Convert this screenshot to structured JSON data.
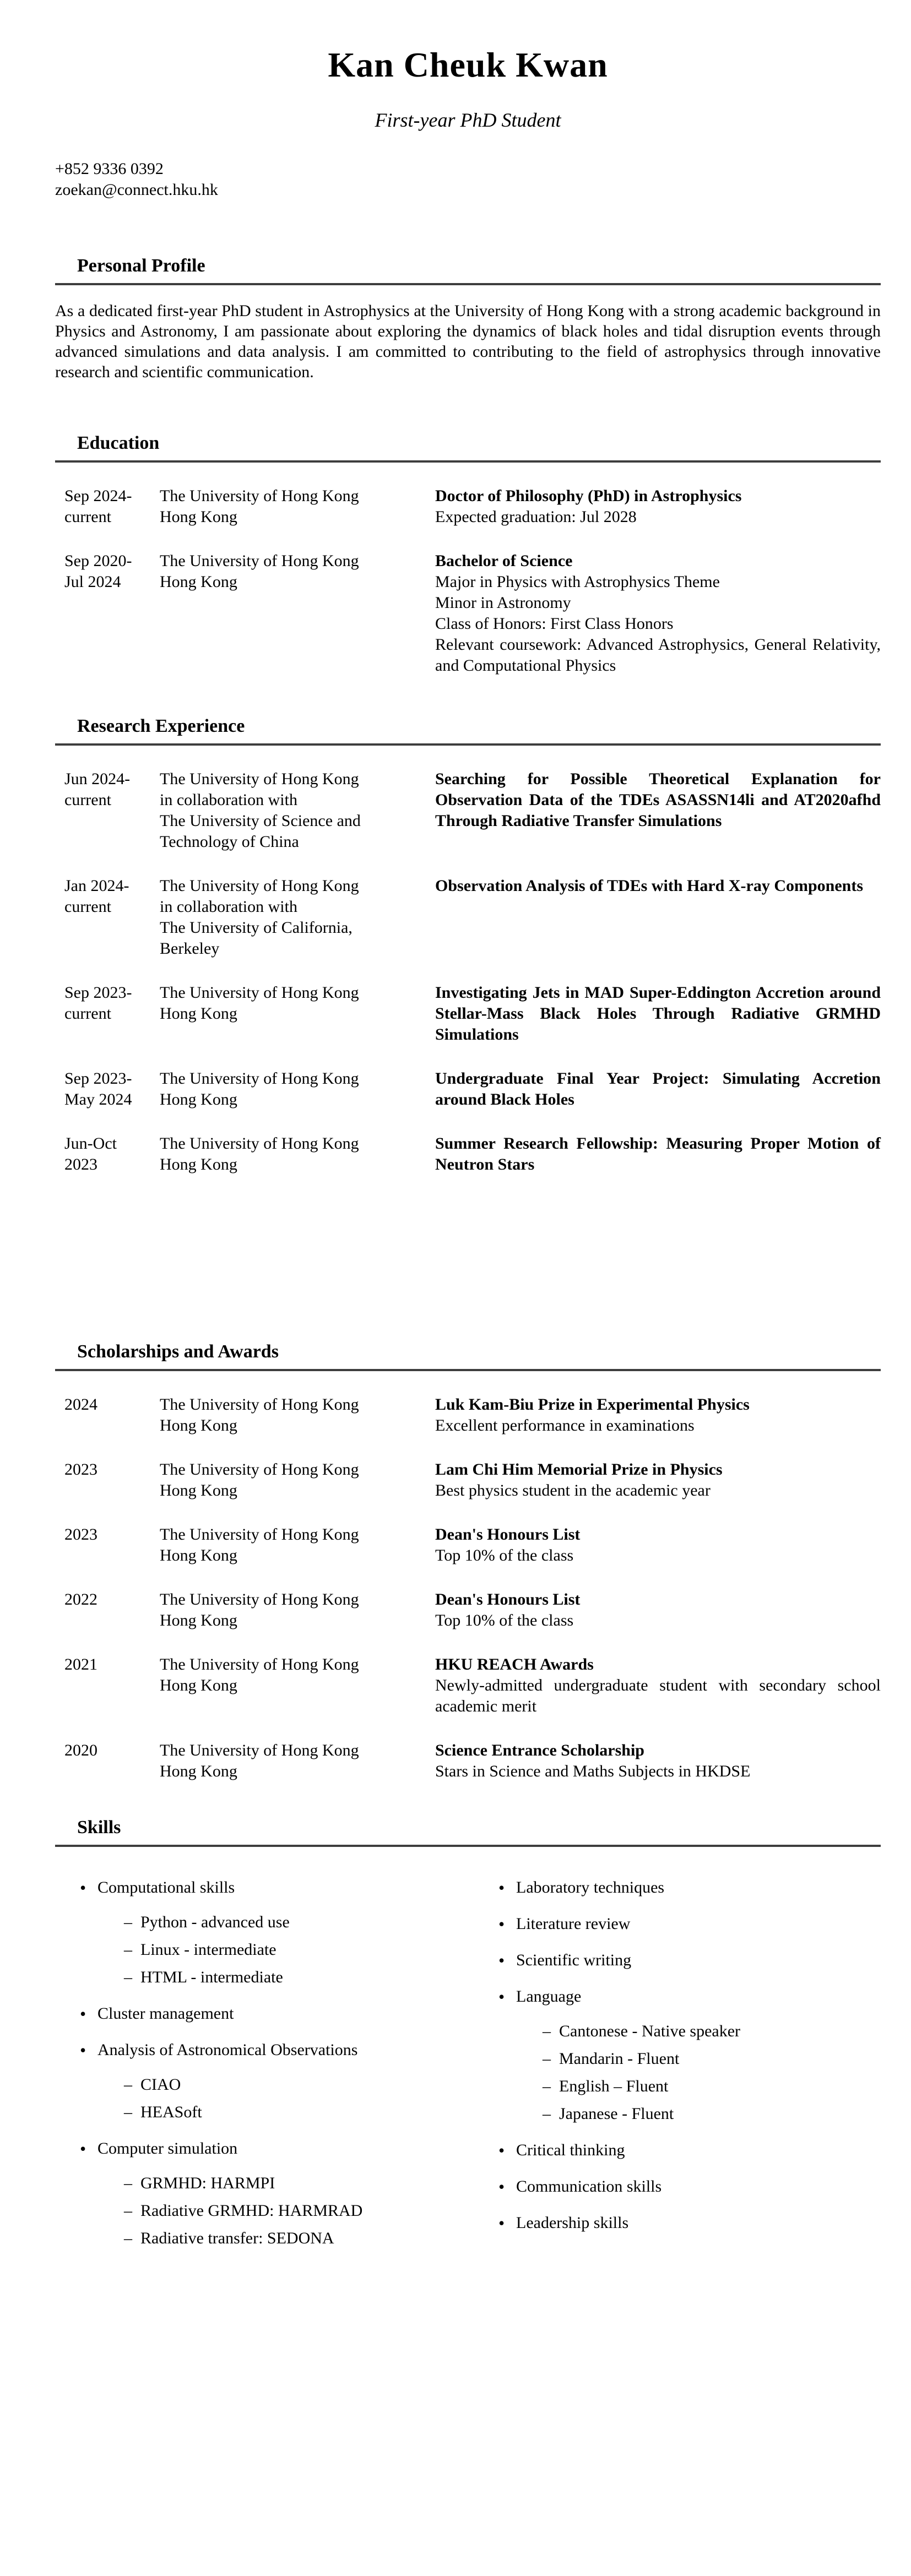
{
  "header": {
    "name": "Kan Cheuk Kwan",
    "subtitle": "First-year PhD Student",
    "phone": "+852 9336 0392",
    "email": "zoekan@connect.hku.hk"
  },
  "profile": {
    "title": "Personal Profile",
    "text": "As a dedicated first-year PhD student in Astrophysics at the University of Hong Kong with a strong academic background in Physics and Astronomy, I am passionate about exploring the dynamics of black holes and tidal disruption events through advanced simulations and data analysis. I am committed to contributing to the field of astrophysics through innovative research and scientific communication."
  },
  "education": {
    "title": "Education",
    "entries": [
      {
        "period": [
          "Sep 2024-",
          "current"
        ],
        "org": [
          "The University of Hong Kong",
          "Hong Kong"
        ],
        "title": "Doctor of Philosophy (PhD) in Astrophysics",
        "details": [
          "Expected graduation: Jul 2028"
        ]
      },
      {
        "period": [
          "Sep 2020-",
          "Jul 2024"
        ],
        "org": [
          "The University of Hong Kong",
          "Hong Kong"
        ],
        "title": "Bachelor of Science",
        "details": [
          "Major in Physics with Astrophysics Theme",
          "Minor in Astronomy",
          "Class of Honors: First Class Honors",
          "Relevant coursework: Advanced Astrophysics, General Relativity, and Computational Physics"
        ]
      }
    ]
  },
  "research": {
    "title": "Research Experience",
    "entries": [
      {
        "period": [
          "Jun 2024-",
          "current"
        ],
        "org": [
          "The University of Hong Kong",
          "in collaboration with",
          "The University of Science and",
          "Technology of China"
        ],
        "title": "Searching for Possible Theoretical Explanation for Observation Data of the TDEs ASASSN14li and AT2020afhd Through Radiative Transfer Simulations"
      },
      {
        "period": [
          "Jan 2024-",
          "current"
        ],
        "org": [
          "The University of Hong Kong",
          "in collaboration with",
          "The University of California,",
          "Berkeley"
        ],
        "title": "Observation Analysis of TDEs with Hard X-ray Components"
      },
      {
        "period": [
          "Sep 2023-",
          "current"
        ],
        "org": [
          "The University of Hong Kong",
          "Hong Kong"
        ],
        "title": "Investigating Jets in MAD Super-Eddington Accretion around Stellar-Mass Black Holes Through Radiative GRMHD Simulations"
      },
      {
        "period": [
          "Sep 2023-",
          "May 2024"
        ],
        "org": [
          "The University of Hong Kong",
          "Hong Kong"
        ],
        "title": "Undergraduate Final Year Project: Simulating Accretion around Black Holes"
      },
      {
        "period": [
          "Jun-Oct",
          "2023"
        ],
        "org": [
          "The University of Hong Kong",
          "Hong Kong"
        ],
        "title": "Summer Research Fellowship: Measuring Proper Motion of Neutron Stars"
      }
    ]
  },
  "awards": {
    "title": "Scholarships and Awards",
    "entries": [
      {
        "period": [
          "2024"
        ],
        "org": [
          "The University of Hong Kong",
          "Hong Kong"
        ],
        "title": "Luk Kam-Biu Prize in Experimental Physics",
        "details": [
          "Excellent performance in examinations"
        ]
      },
      {
        "period": [
          "2023"
        ],
        "org": [
          "The University of Hong Kong",
          "Hong Kong"
        ],
        "title": "Lam Chi Him Memorial Prize in Physics",
        "details": [
          "Best physics student in the academic year"
        ]
      },
      {
        "period": [
          "2023"
        ],
        "org": [
          "The University of Hong Kong",
          "Hong Kong"
        ],
        "title": "Dean's Honours List",
        "details": [
          "Top 10% of the class"
        ]
      },
      {
        "period": [
          "2022"
        ],
        "org": [
          "The University of Hong Kong",
          "Hong Kong"
        ],
        "title": "Dean's Honours List",
        "details": [
          "Top 10% of the class"
        ]
      },
      {
        "period": [
          "2021"
        ],
        "org": [
          "The University of Hong Kong",
          "Hong Kong"
        ],
        "title": "HKU REACH Awards",
        "details": [
          "Newly-admitted undergraduate student with secondary school academic merit"
        ]
      },
      {
        "period": [
          "2020"
        ],
        "org": [
          "The University of Hong Kong",
          "Hong Kong"
        ],
        "title": "Science Entrance Scholarship",
        "details": [
          "Stars in Science and Maths Subjects in HKDSE"
        ]
      }
    ]
  },
  "skills": {
    "title": "Skills",
    "left": [
      {
        "label": "Computational skills",
        "subs": [
          "Python - advanced use",
          "Linux - intermediate",
          "HTML - intermediate"
        ]
      },
      {
        "label": "Cluster management",
        "subs": []
      },
      {
        "label": "Analysis of Astronomical Observations",
        "subs": [
          "CIAO",
          "HEASoft"
        ]
      },
      {
        "label": "Computer simulation",
        "subs": [
          "GRMHD: HARMPI",
          "Radiative GRMHD: HARMRAD",
          "Radiative transfer: SEDONA"
        ]
      }
    ],
    "right": [
      {
        "label": "Laboratory techniques",
        "subs": []
      },
      {
        "label": "Literature review",
        "subs": []
      },
      {
        "label": "Scientific writing",
        "subs": []
      },
      {
        "label": "Language",
        "subs": [
          "Cantonese - Native speaker",
          "Mandarin - Fluent",
          "English – Fluent",
          "Japanese - Fluent"
        ]
      },
      {
        "label": "Critical thinking",
        "subs": []
      },
      {
        "label": "Communication skills",
        "subs": []
      },
      {
        "label": "Leadership skills",
        "subs": []
      }
    ]
  }
}
